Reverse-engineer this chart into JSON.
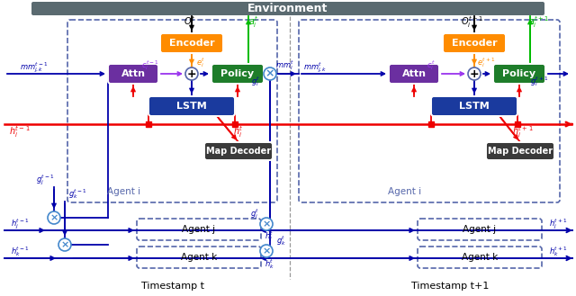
{
  "fig_width": 6.4,
  "fig_height": 3.29,
  "bg_color": "#ffffff",
  "env_bar_color": "#5a6a70",
  "env_text": "Environment",
  "encoder_color": "#FF8C00",
  "attn_color": "#6B2FA0",
  "policy_color": "#1E7D2A",
  "lstm_color": "#1a3a9e",
  "map_decoder_color": "#3a3a3a",
  "red_color": "#ee0000",
  "blue_dark": "#0000aa",
  "blue_med": "#1a1aee",
  "green_color": "#00bb00",
  "orange_color": "#FF8C00",
  "purple_color": "#9933ee",
  "dashed_color": "#5566aa",
  "cross_edge": "#4488cc",
  "timestamp_t": "Timestamp t",
  "timestamp_t1": "Timestamp t+1",
  "agent_i_label": "Agent i",
  "agent_j_label": "Agent j",
  "agent_k_label": "Agent k",
  "env_text_color": "white"
}
